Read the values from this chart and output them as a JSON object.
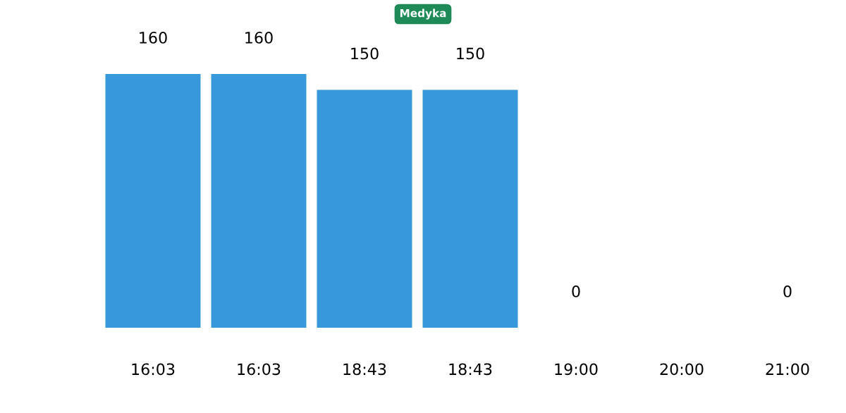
{
  "chart_data": {
    "type": "bar",
    "title": "Medyka",
    "categories": [
      "16:03",
      "16:03",
      "18:43",
      "18:43",
      "19:00",
      "20:00",
      "21:00"
    ],
    "values": [
      160,
      160,
      150,
      150,
      0,
      null,
      0
    ],
    "color": "#3798db",
    "data_labels": true,
    "grid": false,
    "legend": false
  }
}
